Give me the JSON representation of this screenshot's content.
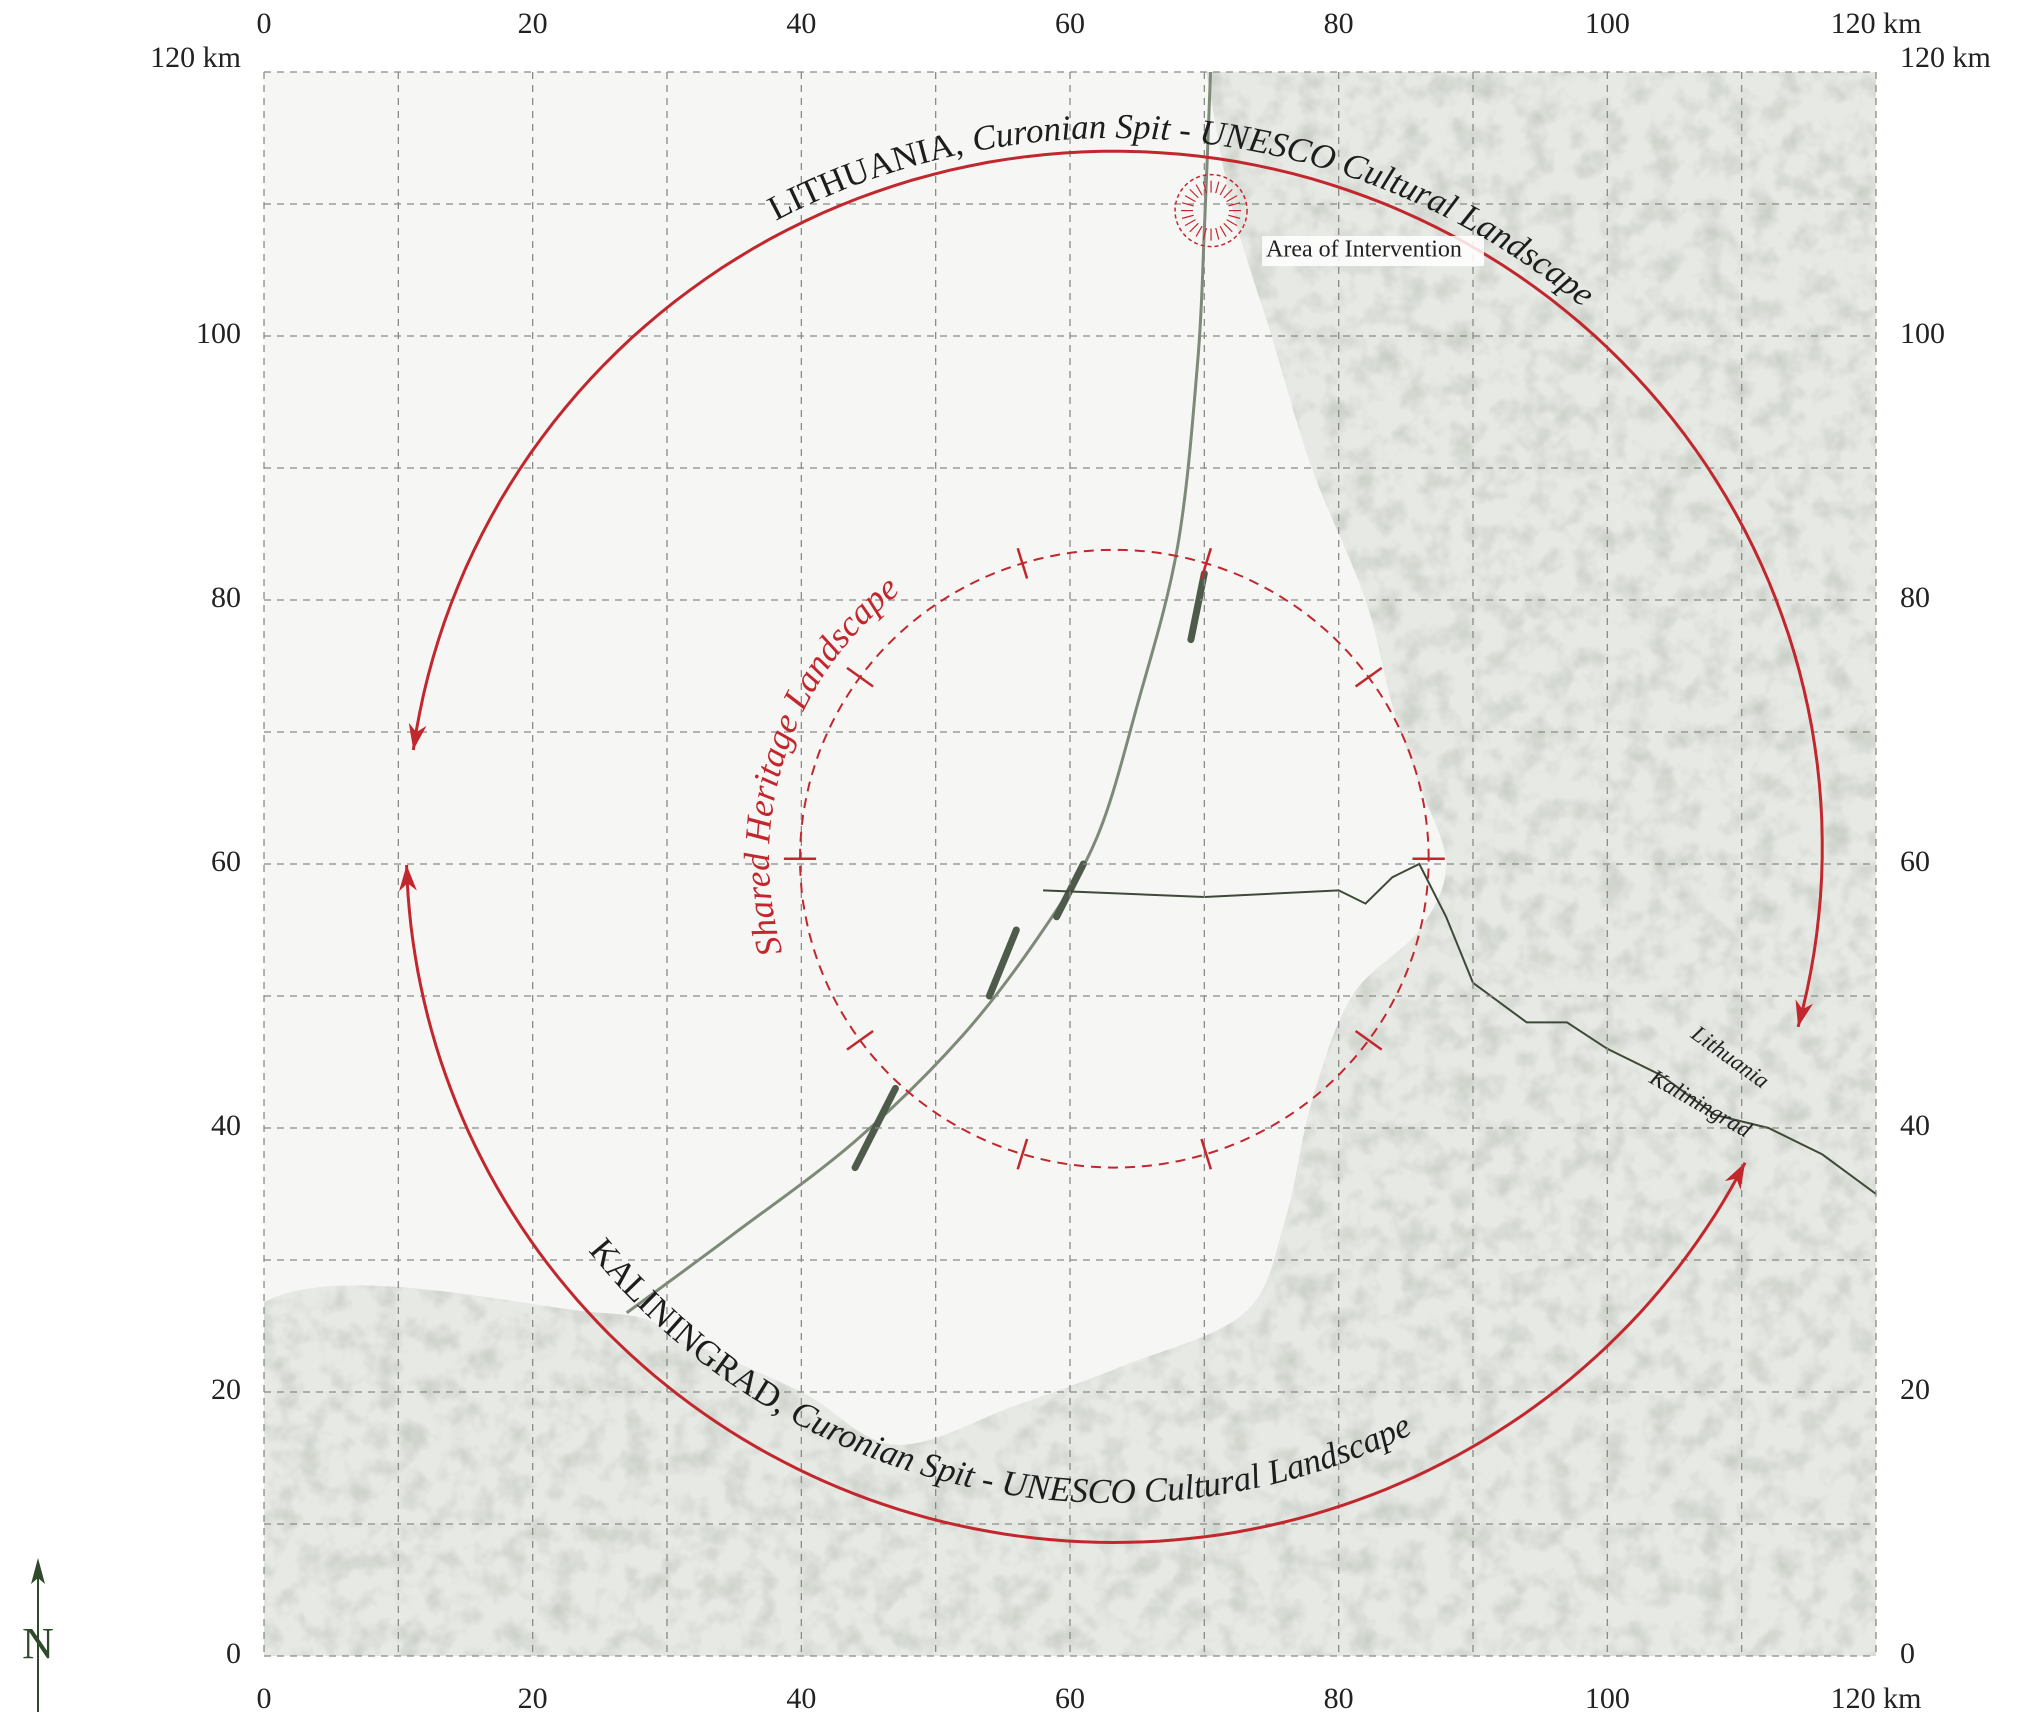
{
  "axes": {
    "xlim": [
      0,
      120
    ],
    "ylim": [
      0,
      120
    ],
    "xticks": [
      0,
      20,
      40,
      60,
      80,
      100,
      {
        "value": 120,
        "label": "120 km"
      }
    ],
    "yticks": [
      0,
      20,
      40,
      60,
      80,
      100,
      {
        "value": 120,
        "label": "120 km"
      }
    ]
  },
  "annotations": {
    "lithuania_arc": {
      "country": "LITHUANIA,",
      "rest": "Curonian Spit - UNESCO Cultural Landscape"
    },
    "kaliningrad_arc": {
      "country": "KALININGRAD,",
      "rest": "Curonian Spit - UNESCO Cultural Landscape"
    },
    "shared_heritage": "Shared Heritage Landscape",
    "area_of_intervention": "Area of Intervention",
    "border_north": "Lithuania",
    "border_south": "Kaliningrad"
  },
  "north_label": "N"
}
